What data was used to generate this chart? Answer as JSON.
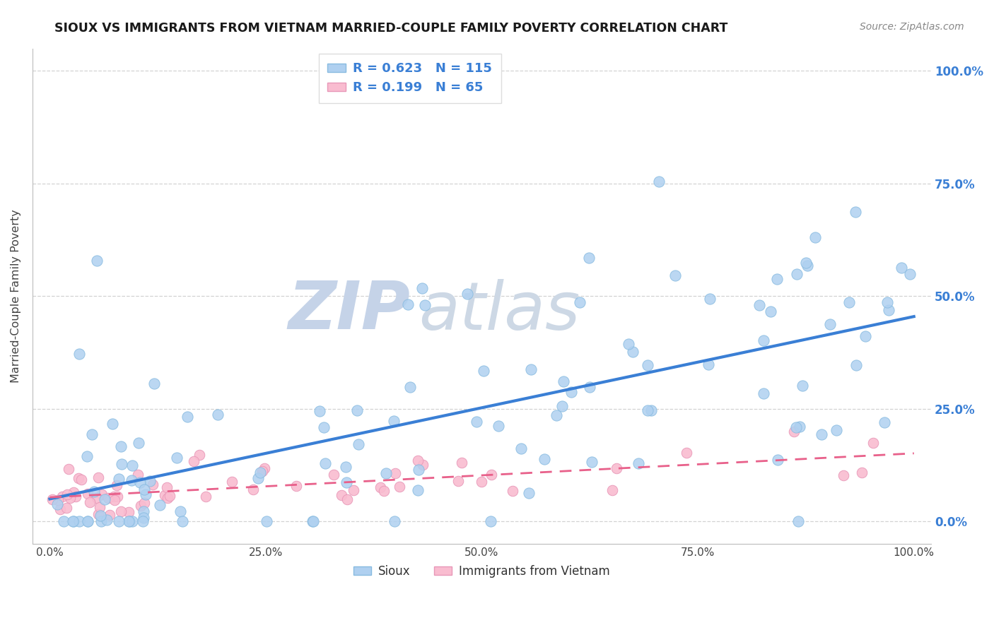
{
  "title": "SIOUX VS IMMIGRANTS FROM VIETNAM MARRIED-COUPLE FAMILY POVERTY CORRELATION CHART",
  "source": "Source: ZipAtlas.com",
  "ylabel": "Married-Couple Family Poverty",
  "xtick_labels": [
    "0.0%",
    "25.0%",
    "50.0%",
    "75.0%",
    "100.0%"
  ],
  "xtick_vals": [
    0,
    25,
    50,
    75,
    100
  ],
  "ytick_vals": [
    0,
    25,
    50,
    75,
    100
  ],
  "right_ytick_labels": [
    "0.0%",
    "25.0%",
    "50.0%",
    "75.0%",
    "100.0%"
  ],
  "xlim": [
    -2,
    102
  ],
  "ylim": [
    -5,
    105
  ],
  "sioux_R": 0.623,
  "sioux_N": 115,
  "vietnam_R": 0.199,
  "vietnam_N": 65,
  "sioux_color": "#afd0f0",
  "sioux_edge": "#88bbe0",
  "vietnam_color": "#f9bcd0",
  "vietnam_edge": "#e898b8",
  "trend_sioux_color": "#3a7fd5",
  "trend_vietnam_color": "#e8608a",
  "background_color": "#ffffff",
  "grid_color": "#c8c8c8",
  "watermark_color_zip": "#c8d4e8",
  "watermark_color_atlas": "#c0ccdd",
  "legend_label_sioux": "Sioux",
  "legend_label_vietnam": "Immigrants from Vietnam",
  "trend_sioux_intercept": 0.0,
  "trend_sioux_slope": 0.5,
  "trend_vietnam_intercept": 1.5,
  "trend_vietnam_slope": 0.08
}
